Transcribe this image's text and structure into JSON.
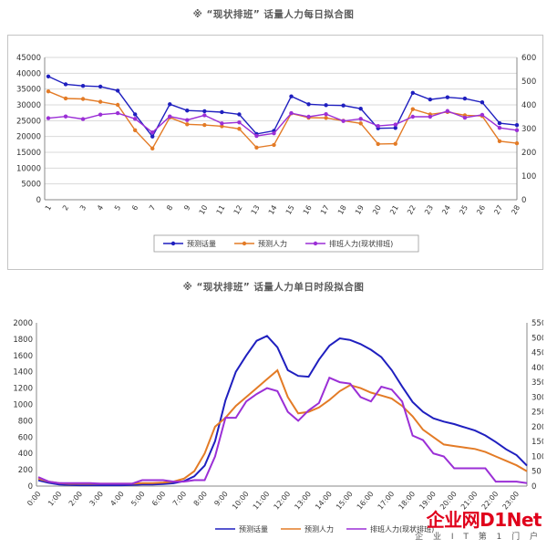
{
  "chart_data": [
    {
      "type": "line",
      "title": "※ “现状排班” 话量人力每日拟合图",
      "x": [
        "1",
        "2",
        "3",
        "4",
        "5",
        "6",
        "7",
        "8",
        "9",
        "10",
        "11",
        "12",
        "13",
        "14",
        "15",
        "16",
        "17",
        "18",
        "19",
        "20",
        "21",
        "22",
        "23",
        "24",
        "25",
        "26",
        "27",
        "28"
      ],
      "ylim": [
        0,
        45000
      ],
      "yticks": [
        0,
        5000,
        10000,
        15000,
        20000,
        25000,
        30000,
        35000,
        40000,
        45000
      ],
      "y2lim": [
        0,
        600
      ],
      "y2ticks": [
        0,
        100,
        200,
        300,
        400,
        500,
        600
      ],
      "grid": true,
      "legend_position": "bottom",
      "series": [
        {
          "name": "预测话量",
          "axis": "left",
          "color": "#1f1fbf",
          "values": [
            39000,
            36500,
            36000,
            35800,
            34500,
            27000,
            20000,
            30200,
            28200,
            28000,
            27700,
            27000,
            20800,
            21800,
            32700,
            30200,
            29900,
            29800,
            28800,
            22600,
            22700,
            33800,
            31700,
            32400,
            32000,
            30800,
            24200,
            23600
          ]
        },
        {
          "name": "预测人力",
          "axis": "right",
          "color": "#e37b26",
          "values": [
            457,
            427,
            425,
            413,
            400,
            293,
            216,
            347,
            318,
            315,
            310,
            299,
            220,
            231,
            364,
            346,
            345,
            333,
            322,
            235,
            236,
            382,
            360,
            370,
            356,
            353,
            247,
            238
          ]
        },
        {
          "name": "排班人力(现状排班)",
          "axis": "right",
          "color": "#9b2fd6",
          "values": [
            344,
            351,
            340,
            359,
            365,
            341,
            284,
            351,
            336,
            356,
            322,
            326,
            269,
            280,
            365,
            350,
            361,
            332,
            341,
            311,
            317,
            350,
            350,
            374,
            346,
            358,
            303,
            293
          ]
        }
      ]
    },
    {
      "type": "line",
      "title": "※ “现状排班” 话量人力单日时段拟合图",
      "x": [
        "0:00",
        "0:30",
        "1:00",
        "1:30",
        "2:00",
        "2:30",
        "3:00",
        "3:30",
        "4:00",
        "4:30",
        "5:00",
        "5:30",
        "6:00",
        "6:30",
        "7:00",
        "7:30",
        "8:00",
        "8:30",
        "9:00",
        "9:30",
        "10:00",
        "10:30",
        "11:00",
        "11:30",
        "12:00",
        "12:30",
        "13:00",
        "13:30",
        "14:00",
        "14:30",
        "15:00",
        "15:30",
        "16:00",
        "16:30",
        "17:00",
        "17:30",
        "18:00",
        "18:30",
        "19:00",
        "19:30",
        "20:00",
        "20:30",
        "21:00",
        "21:30",
        "22:00",
        "22:30",
        "23:00",
        "23:30"
      ],
      "xticks": [
        "0:00",
        "1:00",
        "2:00",
        "3:00",
        "4:00",
        "5:00",
        "6:00",
        "7:00",
        "8:00",
        "9:00",
        "10:00",
        "11:00",
        "12:00",
        "13:00",
        "14:00",
        "15:00",
        "16:00",
        "17:00",
        "18:00",
        "19:00",
        "20:00",
        "21:00",
        "22:00",
        "23:00"
      ],
      "ylim": [
        0,
        2000
      ],
      "yticks": [
        0,
        200,
        400,
        600,
        800,
        1000,
        1200,
        1400,
        1600,
        1800,
        2000
      ],
      "y2lim": [
        0,
        550
      ],
      "y2ticks": [
        0,
        50,
        100,
        150,
        200,
        250,
        300,
        350,
        400,
        450,
        500,
        550
      ],
      "grid": false,
      "legend_position": "bottom",
      "series": [
        {
          "name": "预测话量",
          "axis": "left",
          "color": "#1f1fbf",
          "values": [
            70,
            40,
            20,
            15,
            10,
            10,
            10,
            10,
            10,
            15,
            20,
            20,
            25,
            35,
            60,
            120,
            250,
            550,
            1050,
            1400,
            1600,
            1780,
            1840,
            1700,
            1420,
            1350,
            1340,
            1550,
            1720,
            1810,
            1790,
            1740,
            1670,
            1580,
            1420,
            1220,
            1030,
            910,
            830,
            790,
            760,
            720,
            680,
            620,
            540,
            450,
            380,
            250
          ]
        },
        {
          "name": "预测人力",
          "axis": "right",
          "color": "#e37b26",
          "values": [
            25,
            15,
            10,
            8,
            8,
            8,
            8,
            8,
            8,
            8,
            10,
            10,
            12,
            15,
            25,
            50,
            110,
            200,
            230,
            270,
            300,
            330,
            360,
            390,
            300,
            245,
            250,
            265,
            290,
            320,
            340,
            330,
            315,
            305,
            295,
            270,
            235,
            190,
            165,
            140,
            135,
            130,
            125,
            115,
            100,
            85,
            70,
            50
          ]
        },
        {
          "name": "排班人力(现状排班)",
          "axis": "right",
          "color": "#9b2fd6",
          "values": [
            30,
            15,
            10,
            10,
            10,
            10,
            8,
            8,
            8,
            8,
            20,
            20,
            20,
            15,
            15,
            20,
            20,
            100,
            230,
            230,
            285,
            310,
            330,
            320,
            250,
            220,
            255,
            280,
            365,
            350,
            345,
            300,
            285,
            335,
            325,
            285,
            170,
            155,
            110,
            100,
            60,
            60,
            60,
            60,
            15,
            15,
            15,
            10
          ]
        }
      ]
    }
  ],
  "watermark": {
    "brand": "企业网D1Net",
    "sub": "企 业 I T 第 1 门 户"
  }
}
